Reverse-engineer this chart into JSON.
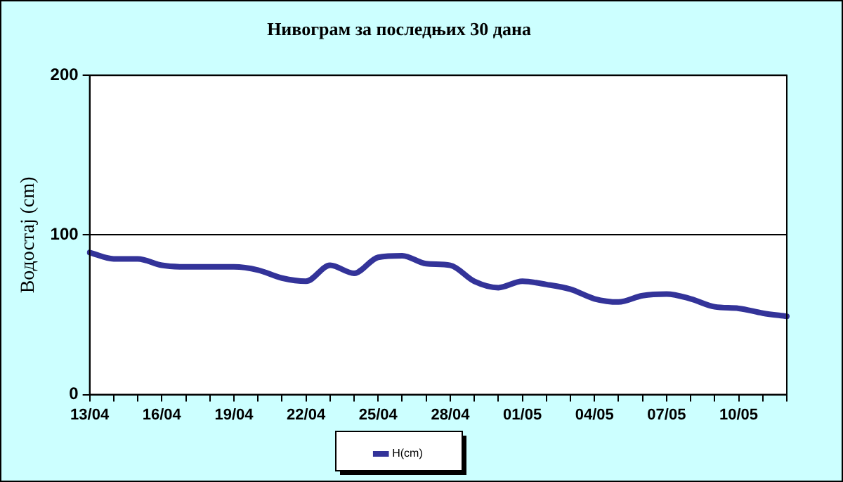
{
  "chart_data": {
    "type": "line",
    "title": "Нивограм за последњих 30 дана",
    "ylabel": "Водостај (cm)",
    "categories": [
      "13/04",
      null,
      null,
      "16/04",
      null,
      null,
      "19/04",
      null,
      null,
      "22/04",
      null,
      null,
      "25/04",
      null,
      null,
      "28/04",
      null,
      null,
      "01/05",
      null,
      null,
      "04/05",
      null,
      null,
      "07/05",
      null,
      null,
      "10/05",
      null,
      null
    ],
    "series": [
      {
        "name": "H(cm)",
        "color": "#333399",
        "values": [
          89,
          85,
          85,
          81,
          80,
          80,
          80,
          78,
          73,
          71,
          81,
          76,
          86,
          87,
          82,
          81,
          71,
          67,
          71,
          69,
          66,
          60,
          58,
          62,
          63,
          60,
          55,
          54,
          51,
          49
        ]
      }
    ],
    "ylim": [
      0,
      200
    ],
    "yticks": [
      0,
      100,
      200
    ],
    "grid": "y",
    "legend": "bottom",
    "marker": "none",
    "line_style": "solid"
  }
}
